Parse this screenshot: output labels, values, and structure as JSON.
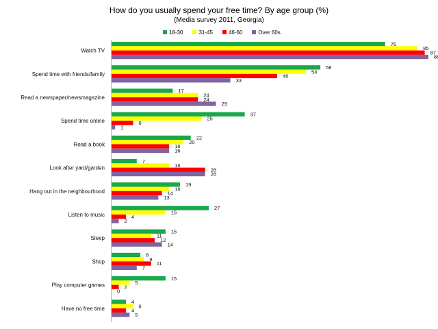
{
  "chart_data": {
    "type": "bar",
    "orientation": "horizontal",
    "title": "How do you usually spend your free time? By age group (%)",
    "subtitle": "(Media survey 2011, Georgia)",
    "legend_position": "top",
    "categories": [
      "Watch TV",
      "Spend time with friends/family",
      "Read a newspaper/newsmagazine",
      "Spend time online",
      "Read a book",
      "Look after yard/garden",
      "Hang out in the neighbourhood",
      "Listen to music",
      "Sleep",
      "Shop",
      "Play computer games",
      "Have no free time"
    ],
    "series": [
      {
        "name": "18-30",
        "color": "#1aa84a",
        "values": [
          76,
          58,
          17,
          37,
          22,
          7,
          19,
          27,
          15,
          8,
          15,
          4
        ]
      },
      {
        "name": "31-45",
        "color": "#ffff00",
        "values": [
          85,
          54,
          24,
          25,
          20,
          16,
          16,
          15,
          11,
          9,
          5,
          6
        ]
      },
      {
        "name": "46-60",
        "color": "#ff0000",
        "values": [
          87,
          46,
          24,
          6,
          16,
          26,
          14,
          4,
          12,
          11,
          2,
          4
        ]
      },
      {
        "name": "Over 60s",
        "color": "#8064a2",
        "values": [
          88,
          33,
          29,
          1,
          16,
          26,
          13,
          2,
          14,
          7,
          0,
          5
        ]
      }
    ],
    "xlim": [
      0,
      90
    ],
    "grid": false
  }
}
